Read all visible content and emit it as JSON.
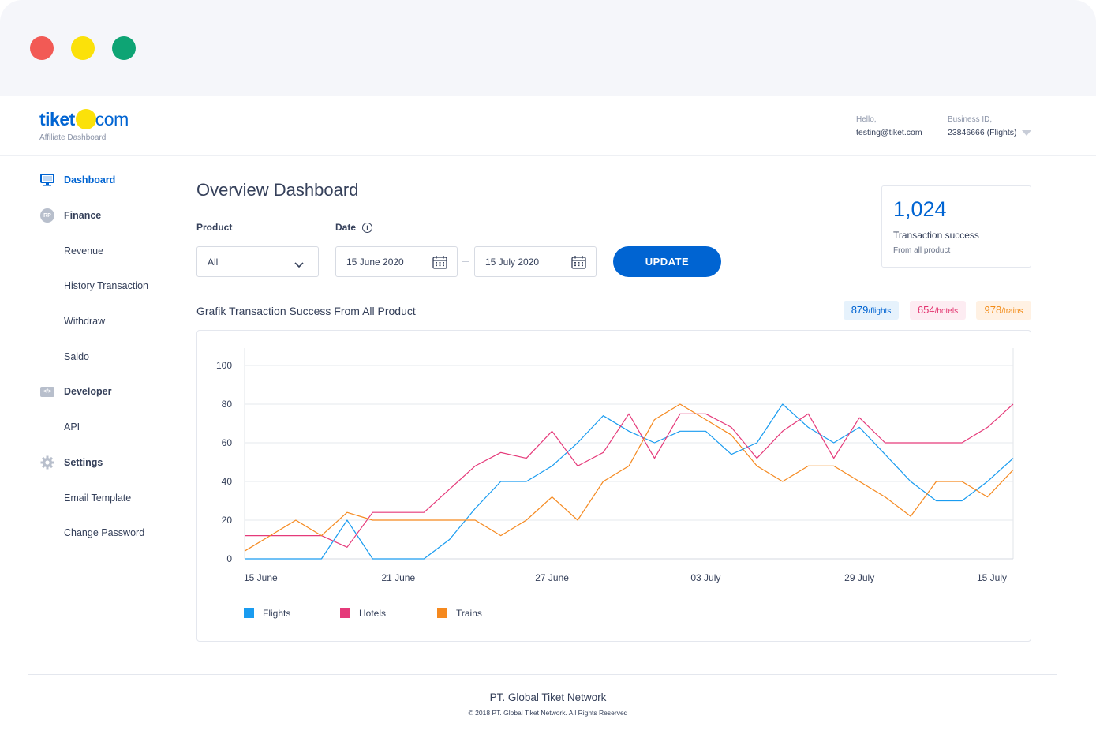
{
  "brand": {
    "logo_left": "tiket",
    "logo_right": "com",
    "subtitle": "Affiliate Dashboard",
    "primary_color": "#0064d2",
    "accent_color": "#fbe10a"
  },
  "header": {
    "hello_label": "Hello,",
    "email": "testing@tiket.com",
    "business_label": "Business ID,",
    "business_id": "23846666 (Flights)"
  },
  "sidebar": {
    "items": [
      {
        "label": "Dashboard",
        "icon": "monitor-icon",
        "active": true
      },
      {
        "label": "Finance",
        "icon": "rp-icon",
        "badge": "RP"
      },
      {
        "label": "Revenue"
      },
      {
        "label": "History Transaction"
      },
      {
        "label": "Withdraw"
      },
      {
        "label": "Saldo"
      },
      {
        "label": "Developer",
        "icon": "code-icon",
        "badge": "</>"
      },
      {
        "label": "API"
      },
      {
        "label": "Settings",
        "icon": "gear-icon"
      },
      {
        "label": "Email Template"
      },
      {
        "label": "Change Password"
      }
    ]
  },
  "main": {
    "title": "Overview Dashboard",
    "product_label": "Product",
    "product_value": "All",
    "date_label": "Date",
    "date_start": "15 June 2020",
    "date_end": "15 July 2020",
    "update_button": "UPDATE",
    "chart_title": "Grafik Transaction Success From All Product",
    "stat": {
      "value": "1,024",
      "label": "Transaction success",
      "sublabel": "From all product"
    },
    "badges": [
      {
        "value": "879",
        "unit": "/flights"
      },
      {
        "value": "654",
        "unit": "/hotels"
      },
      {
        "value": "978",
        "unit": "/trains"
      }
    ]
  },
  "chart_data": {
    "type": "line",
    "title": "Grafik Transaction Success From All Product",
    "xlabel": "",
    "ylabel": "",
    "ylim": [
      0,
      100
    ],
    "yticks": [
      0,
      20,
      40,
      60,
      80,
      100
    ],
    "x_tick_labels": [
      "15 June",
      "21 June",
      "27 June",
      "03 July",
      "29 July",
      "15 July"
    ],
    "grid": true,
    "legend_position": "bottom-left",
    "series": [
      {
        "name": "Flights",
        "color": "#1a9cf0",
        "values": [
          0,
          0,
          0,
          0,
          20,
          0,
          0,
          0,
          10,
          26,
          40,
          40,
          48,
          60,
          74,
          66,
          60,
          66,
          66,
          54,
          60,
          80,
          68,
          60,
          68,
          54,
          40,
          30,
          30,
          40,
          52
        ]
      },
      {
        "name": "Hotels",
        "color": "#e53a7a",
        "values": [
          12,
          12,
          12,
          12,
          6,
          24,
          24,
          24,
          36,
          48,
          55,
          52,
          66,
          48,
          55,
          75,
          52,
          75,
          75,
          68,
          52,
          66,
          75,
          52,
          73,
          60,
          60,
          60,
          60,
          68,
          80
        ]
      },
      {
        "name": "Trains",
        "color": "#f5891f",
        "values": [
          4,
          12,
          20,
          12,
          24,
          20,
          20,
          20,
          20,
          20,
          12,
          20,
          32,
          20,
          40,
          48,
          72,
          80,
          72,
          64,
          48,
          40,
          48,
          48,
          40,
          32,
          22,
          40,
          40,
          32,
          46
        ]
      }
    ]
  },
  "footer": {
    "company": "PT. Global Tiket Network",
    "copyright": "© 2018 PT. Global Tiket Network. All Rights Reserved"
  }
}
